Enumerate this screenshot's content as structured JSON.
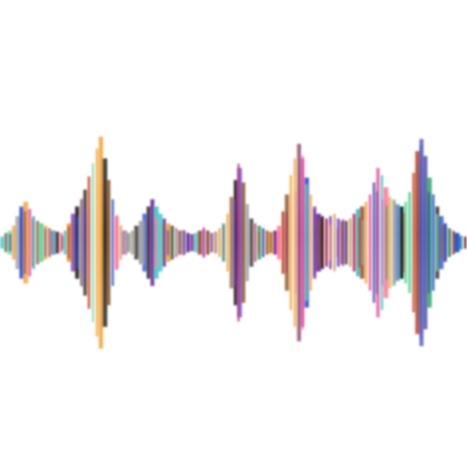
{
  "image": {
    "background": "#ffffff",
    "subject": "audio-waveform",
    "palette": [
      "#2a1a10",
      "#8b5a2b",
      "#3a3aa0",
      "#2050c8",
      "#6a2a9a",
      "#b03060",
      "#e0409a",
      "#ff6f91",
      "#f0a030",
      "#2aa060",
      "#30c0c0",
      "#60d8a0",
      "#202020",
      "#a0522d",
      "#c04020",
      "#7a4fd0",
      "#d0b080",
      "#9c9c9c"
    ],
    "amplitudes": [
      0.05,
      0.08,
      0.1,
      0.14,
      0.22,
      0.3,
      0.34,
      0.28,
      0.22,
      0.18,
      0.16,
      0.14,
      0.12,
      0.1,
      0.09,
      0.08,
      0.1,
      0.16,
      0.24,
      0.3,
      0.36,
      0.44,
      0.55,
      0.66,
      0.78,
      0.88,
      0.7,
      0.52,
      0.36,
      0.22,
      0.14,
      0.1,
      0.08,
      0.1,
      0.14,
      0.18,
      0.24,
      0.3,
      0.36,
      0.3,
      0.24,
      0.2,
      0.16,
      0.14,
      0.12,
      0.1,
      0.1,
      0.08,
      0.07,
      0.08,
      0.1,
      0.12,
      0.1,
      0.08,
      0.09,
      0.12,
      0.16,
      0.24,
      0.38,
      0.52,
      0.62,
      0.5,
      0.32,
      0.2,
      0.16,
      0.14,
      0.12,
      0.1,
      0.09,
      0.1,
      0.14,
      0.26,
      0.4,
      0.56,
      0.7,
      0.82,
      0.7,
      0.54,
      0.4,
      0.3,
      0.24,
      0.22,
      0.2,
      0.22,
      0.24,
      0.2,
      0.18,
      0.18,
      0.2,
      0.24,
      0.28,
      0.3,
      0.34,
      0.4,
      0.5,
      0.62,
      0.56,
      0.46,
      0.38,
      0.36,
      0.32,
      0.3,
      0.34,
      0.42,
      0.58,
      0.76,
      0.86,
      0.72,
      0.54,
      0.4,
      0.3,
      0.22,
      0.16,
      0.12,
      0.1,
      0.08,
      0.06,
      0.05
    ]
  }
}
